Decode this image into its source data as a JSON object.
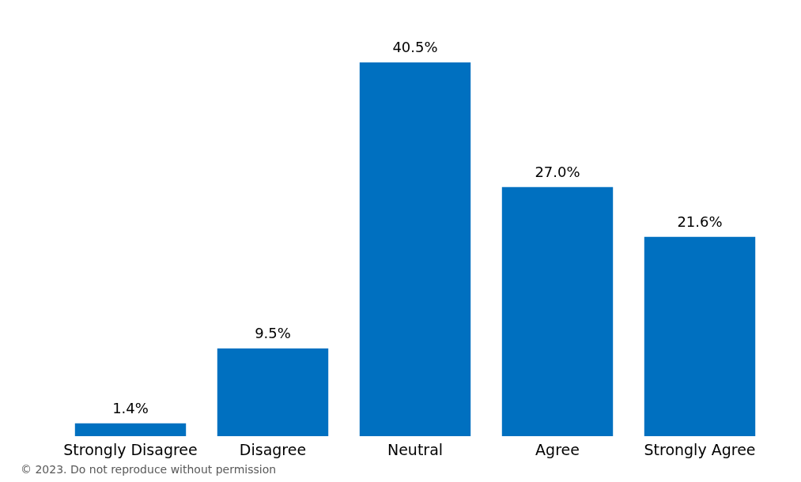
{
  "chart_data": {
    "type": "bar",
    "categories": [
      "Strongly Disagree",
      "Disagree",
      "Neutral",
      "Agree",
      "Strongly Agree"
    ],
    "values": [
      1.4,
      9.5,
      40.5,
      27.0,
      21.6
    ],
    "value_labels": [
      "1.4%",
      "9.5%",
      "40.5%",
      "27.0%",
      "21.6%"
    ],
    "color": "#0070c0",
    "annotations": [
      "© 2023. Do not reproduce without permission"
    ]
  }
}
